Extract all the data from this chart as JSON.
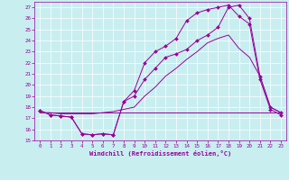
{
  "bg_color": "#c8eef0",
  "line_color": "#990099",
  "grid_color": "#ffffff",
  "xlabel": "Windchill (Refroidissement éolien,°C)",
  "xlim": [
    -0.5,
    23.5
  ],
  "ylim": [
    15,
    27.5
  ],
  "xticks": [
    0,
    1,
    2,
    3,
    4,
    5,
    6,
    7,
    8,
    9,
    10,
    11,
    12,
    13,
    14,
    15,
    16,
    17,
    18,
    19,
    20,
    21,
    22,
    23
  ],
  "yticks": [
    15,
    16,
    17,
    18,
    19,
    20,
    21,
    22,
    23,
    24,
    25,
    26,
    27
  ],
  "line_flat_x": [
    0,
    1,
    2,
    3,
    4,
    5,
    6,
    7,
    8,
    9,
    10,
    11,
    12,
    13,
    14,
    15,
    16,
    17,
    18,
    19,
    20,
    21,
    22,
    23
  ],
  "line_flat_y": [
    17.5,
    17.5,
    17.5,
    17.5,
    17.5,
    17.5,
    17.5,
    17.5,
    17.5,
    17.5,
    17.5,
    17.5,
    17.5,
    17.5,
    17.5,
    17.5,
    17.5,
    17.5,
    17.5,
    17.5,
    17.5,
    17.5,
    17.5,
    17.5
  ],
  "line_dip_x": [
    0,
    1,
    2,
    3,
    4,
    5,
    6,
    7,
    8,
    9,
    10,
    11,
    12,
    13,
    14,
    15,
    16,
    17,
    18,
    19,
    20,
    21,
    22,
    23
  ],
  "line_dip_y": [
    17.7,
    17.3,
    17.2,
    17.1,
    15.6,
    15.5,
    15.6,
    15.5,
    18.5,
    19.0,
    20.5,
    21.5,
    22.5,
    22.8,
    23.2,
    24.0,
    24.5,
    25.2,
    27.0,
    27.2,
    26.0,
    20.8,
    18.0,
    17.5
  ],
  "line_upper_x": [
    0,
    1,
    2,
    3,
    4,
    5,
    6,
    7,
    8,
    9,
    10,
    11,
    12,
    13,
    14,
    15,
    16,
    17,
    18,
    19,
    20,
    21,
    22,
    23
  ],
  "line_upper_y": [
    17.7,
    17.3,
    17.2,
    17.1,
    15.6,
    15.5,
    15.6,
    15.5,
    18.5,
    19.5,
    22.0,
    23.0,
    23.5,
    24.2,
    25.8,
    26.5,
    26.8,
    27.0,
    27.2,
    26.2,
    25.5,
    20.5,
    17.8,
    17.3
  ],
  "line_mid_x": [
    0,
    1,
    2,
    3,
    4,
    5,
    6,
    7,
    8,
    9,
    10,
    11,
    12,
    13,
    14,
    15,
    16,
    17,
    18,
    19,
    20,
    21,
    22,
    23
  ],
  "line_mid_y": [
    17.5,
    17.5,
    17.4,
    17.4,
    17.4,
    17.4,
    17.5,
    17.6,
    17.8,
    18.0,
    19.0,
    19.8,
    20.8,
    21.5,
    22.3,
    23.0,
    23.8,
    24.2,
    24.5,
    23.3,
    22.5,
    20.8,
    18.0,
    17.5
  ]
}
